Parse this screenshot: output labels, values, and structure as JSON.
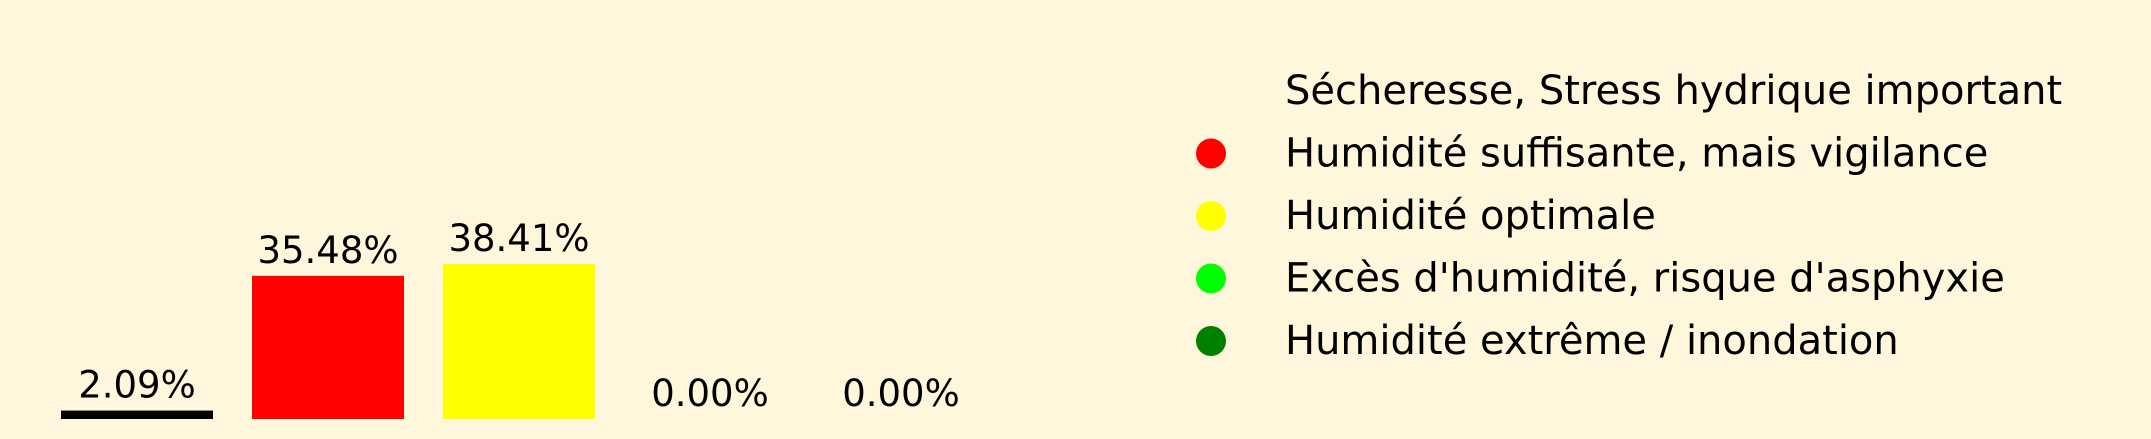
{
  "colors": {
    "background": "#FEF7DC",
    "text": "#000000"
  },
  "chart_data": {
    "type": "bar",
    "categories": [
      "Sécheresse, Stress hydrique important",
      "Humidité suffisante, mais vigilance",
      "Humidité optimale",
      "Excès d'humidité, risque d'asphyxie",
      "Humidité extrême / inondation"
    ],
    "values": [
      2.09,
      35.48,
      38.41,
      0.0,
      0.0
    ],
    "value_labels": [
      "2.09%",
      "35.48%",
      "38.41%",
      "0.00%",
      "0.00%"
    ],
    "colors": [
      "#000000",
      "#FF0000",
      "#FFFF00",
      "#00FF00",
      "#008000"
    ],
    "legend": {
      "placement": "right",
      "entries": [
        {
          "label": "Sécheresse, Stress hydrique important",
          "color": "#000000",
          "marker": "none"
        },
        {
          "label": "Humidité suffisante, mais vigilance",
          "color": "#FF0000",
          "marker": "circle"
        },
        {
          "label": "Humidité optimale",
          "color": "#FFFF00",
          "marker": "circle"
        },
        {
          "label": "Excès d'humidité, risque d'asphyxie",
          "color": "#00FF00",
          "marker": "circle"
        },
        {
          "label": "Humidité extrême / inondation",
          "color": "#008000",
          "marker": "circle"
        }
      ]
    },
    "ylim": [
      0,
      38.41
    ],
    "grid": false,
    "axes_visible": false
  }
}
